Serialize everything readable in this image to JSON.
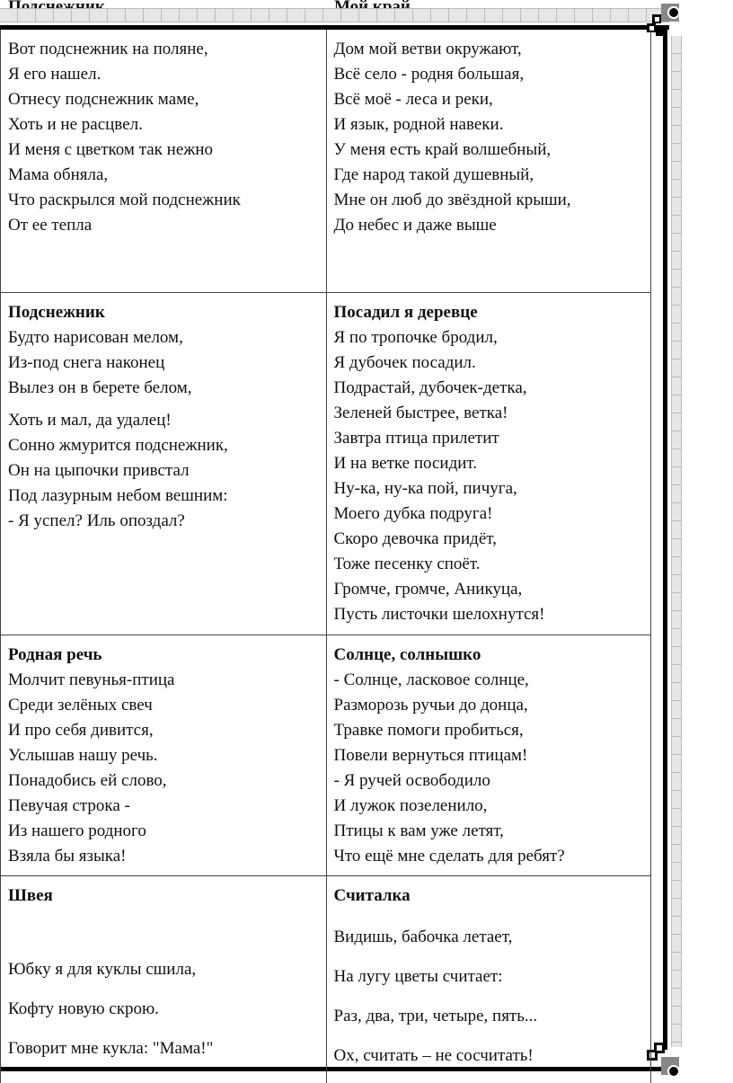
{
  "header": {
    "left": "Подснежник",
    "right": "Мой край"
  },
  "rows": [
    [
      {
        "title": "",
        "lines": [
          "Вот подснежник на поляне,",
          "Я его нашел.",
          "Отнесу подснежник маме,",
          "Хоть и не расцвел.",
          "И меня с цветком так нежно",
          "Мама обняла,",
          "Что раскрылся мой подснежник",
          "От ее тепла"
        ]
      },
      {
        "title": "",
        "lines": [
          "Дом мой ветви окружают,",
          "Всё село - родня большая,",
          "Всё моё - леса и реки,",
          "И язык, родной навеки.",
          "У меня есть край волшебный,",
          "Где народ такой душевный,",
          "Мне он люб до звёздной крыши,",
          "До небес и даже выше"
        ]
      }
    ],
    [
      {
        "title": "Подснежник",
        "lines": [
          "Будто нарисован мелом,",
          "Из-под снега наконец",
          "Вылез он в берете белом,",
          "Хоть и мал, да удалец!",
          "Сонно жмурится подснежник,",
          "Он на цыпочки привстал",
          "Под лазурным небом вешним:",
          "- Я успел? Иль опоздал?"
        ]
      },
      {
        "title": "Посадил я деревце",
        "lines": [
          "Я по тропочке бродил,",
          "Я дубочек посадил.",
          "Подрастай, дубочек-детка,",
          "Зеленей быстрее, ветка!",
          "Завтра птица прилетит",
          "И на ветке посидит.",
          "Ну-ка, ну-ка пой, пичуга,",
          "Моего дубка подруга!",
          "Скоро девочка придёт,",
          "Тоже песенку споёт.",
          "Громче, громче, Аникуца,",
          "Пусть листочки шелохнутся!"
        ]
      }
    ],
    [
      {
        "title": "Родная речь",
        "lines": [
          "Молчит певунья-птица",
          "Среди зелёных свеч",
          "И про себя дивится,",
          "Услышав нашу речь.",
          "Понадобись ей слово,",
          "Певучая строка -",
          "Из нашего родного",
          "Взяла бы языка!"
        ]
      },
      {
        "title": "Солнце, солнышко",
        "lines": [
          "- Солнце, ласковое солнце,",
          "Разморозь ручьи до донца,",
          "Травке помоги пробиться,",
          "Повели вернуться птицам!",
          "- Я ручей освободило",
          "И лужок позеленило,",
          "Птицы к вам уже летят,",
          "Что ещё мне сделать для ребят?"
        ]
      }
    ],
    [
      {
        "title": "Швея",
        "lines": [
          "Юбку я для куклы сшила,",
          "Кофту новую скрою.",
          "Говорит мне кукла: \"Мама!\""
        ]
      },
      {
        "title": "Считалка",
        "lines": [
          "Видишь, бабочка летает,",
          "На лугу цветы считает:",
          "Раз, два, три, четыре, пять...",
          "Ох, считать – не сосчитать!"
        ]
      }
    ]
  ]
}
